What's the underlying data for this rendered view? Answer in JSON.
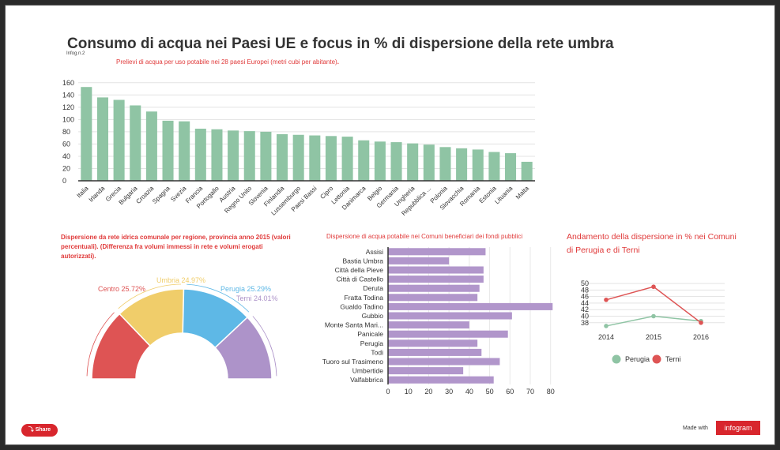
{
  "title": "Consumo di acqua nei Paesi UE e focus in  % di dispersione della rete umbra",
  "infogram_tag": "Infog.n.2",
  "share_label": "Share",
  "made_with": "Made with",
  "brand": "infogram",
  "colors": {
    "accent": "#e03a3a",
    "green": "#8fc4a4",
    "purple": "#b196cb",
    "red": "#de5454",
    "yellow": "#f0cd6a",
    "blue": "#5eb8e6",
    "lavender": "#ad93c9"
  },
  "chart_data": [
    {
      "type": "bar",
      "title": "Prelievi di acqua per uso potabile nei 28 paesi Europei (metri cubi per abitante)",
      "title_suffix": ".",
      "categories": [
        "Italia",
        "Irlanda",
        "Grecia",
        "Bulgaria",
        "Croazia",
        "Spagna",
        "Svezia",
        "Francia",
        "Portogallo",
        "Austria",
        "Regno Unito",
        "Slovenia",
        "Finlandia",
        "Lussemburgo",
        "Paesi Bassi",
        "Cipro",
        "Lettonia",
        "Danimarca",
        "Belgio",
        "Germania",
        "Ungheria",
        "Repubblica ...",
        "Polonia",
        "Slovacchia",
        "Romania",
        "Estonia",
        "Lituania",
        "Malta"
      ],
      "values": [
        153,
        136,
        132,
        123,
        113,
        98,
        97,
        85,
        84,
        82,
        81,
        80,
        76,
        75,
        74,
        73,
        72,
        66,
        64,
        63,
        61,
        59,
        55,
        53,
        51,
        47,
        45,
        31
      ],
      "yticks": [
        0,
        20,
        40,
        60,
        80,
        100,
        120,
        140,
        160
      ],
      "ylim": [
        0,
        170
      ],
      "grid": true
    },
    {
      "type": "pie",
      "title": "Dispersione da rete idrica comunale per regione, provincia anno 2015 (valori percentuali). (Differenza fra volumi immessi in rete e volumi erogati autorizzati).",
      "slices": [
        {
          "name": "Centro",
          "value": 25.72,
          "label": "Centro 25.72%",
          "color": "#de5454"
        },
        {
          "name": "Umbria",
          "value": 24.97,
          "label": "Umbria 24.97%",
          "color": "#f0cd6a"
        },
        {
          "name": "Perugia",
          "value": 25.29,
          "label": "Perugia 25.29%",
          "color": "#5eb8e6"
        },
        {
          "name": "Terni",
          "value": 24.01,
          "label": "Terni 24.01%",
          "color": "#ad93c9"
        }
      ]
    },
    {
      "type": "bar",
      "orientation": "horizontal",
      "title": "Dispersione di acqua potabile nei Comuni beneficiari dei fondi pubblici",
      "categories": [
        "Assisi",
        "Bastia Umbra",
        "Città della Pieve",
        "Città di Castello",
        "Deruta",
        "Fratta Todina",
        "Gualdo Tadino",
        "Gubbio",
        "Monte Santa Mari...",
        "Panicale",
        "Perugia",
        "Todi",
        "Tuoro sul Trasimeno",
        "Umbertide",
        "Valfabbrica"
      ],
      "values": [
        48,
        30,
        47,
        47,
        45,
        44,
        81,
        61,
        40,
        59,
        44,
        46,
        55,
        37,
        52
      ],
      "xticks": [
        0,
        10,
        20,
        30,
        40,
        50,
        60,
        70,
        80
      ],
      "xlim": [
        0,
        84
      ]
    },
    {
      "type": "line",
      "title": "Andamento della dispersione in  % nei Comuni di Perugia e di Terni",
      "x": [
        "2014",
        "2015",
        "2016"
      ],
      "series": [
        {
          "name": "Perugia",
          "values": [
            37,
            40,
            38.5
          ],
          "color": "#8fc4a4"
        },
        {
          "name": "Terni",
          "values": [
            45,
            49,
            38
          ],
          "color": "#de5454"
        }
      ],
      "yticks": [
        38,
        40,
        42,
        44,
        46,
        48,
        50
      ],
      "ylim": [
        36.5,
        50.5
      ],
      "legend": "bottom"
    }
  ]
}
